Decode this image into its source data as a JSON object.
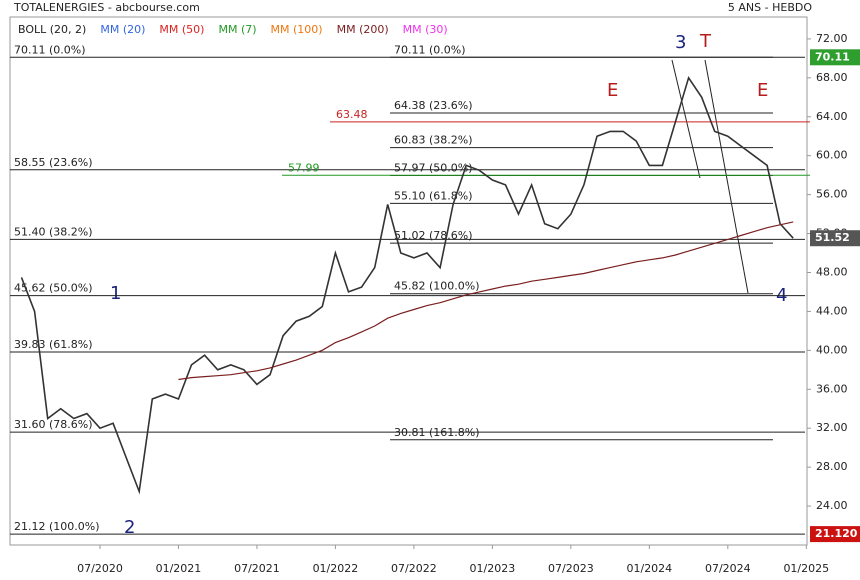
{
  "chart_data": {
    "type": "line",
    "title": "TOTALENERGIES - abcbourse.com",
    "subtitle": "5 ANS - HEBDO",
    "indicators": [
      {
        "name": "BOLL (20, 2)",
        "color": "#222222"
      },
      {
        "name": "MM (20)",
        "color": "#3366dd"
      },
      {
        "name": "MM (50)",
        "color": "#dd2222"
      },
      {
        "name": "MM (7)",
        "color": "#229922"
      },
      {
        "name": "MM (100)",
        "color": "#ee7711"
      },
      {
        "name": "MM (200)",
        "color": "#7a1f1f"
      },
      {
        "name": "MM (30)",
        "color": "#ee33ee"
      }
    ],
    "x": [
      "01/2020",
      "02/2020",
      "03/2020",
      "04/2020",
      "05/2020",
      "06/2020",
      "07/2020",
      "08/2020",
      "09/2020",
      "10/2020",
      "11/2020",
      "12/2020",
      "01/2021",
      "02/2021",
      "03/2021",
      "04/2021",
      "05/2021",
      "06/2021",
      "07/2021",
      "08/2021",
      "09/2021",
      "10/2021",
      "11/2021",
      "12/2021",
      "01/2022",
      "02/2022",
      "03/2022",
      "04/2022",
      "05/2022",
      "06/2022",
      "07/2022",
      "08/2022",
      "09/2022",
      "10/2022",
      "11/2022",
      "12/2022",
      "01/2023",
      "02/2023",
      "03/2023",
      "04/2023",
      "05/2023",
      "06/2023",
      "07/2023",
      "08/2023",
      "09/2023",
      "10/2023",
      "11/2023",
      "12/2023",
      "01/2024",
      "02/2024",
      "03/2024",
      "04/2024",
      "05/2024",
      "06/2024",
      "07/2024",
      "08/2024",
      "09/2024",
      "10/2024",
      "11/2024",
      "12/2024"
    ],
    "series": [
      {
        "color": "#333333",
        "values": [
          47.5,
          44,
          33,
          34,
          33,
          33.5,
          32,
          32.5,
          29,
          25.5,
          35,
          35.5,
          35,
          38.5,
          39.5,
          38,
          38.5,
          38,
          36.5,
          37.5,
          41.5,
          43,
          43.5,
          44.5,
          50,
          46,
          46.5,
          48.5,
          55,
          50,
          49.5,
          50,
          48.5,
          55,
          59,
          58.5,
          57.5,
          57,
          54,
          57,
          53,
          52.5,
          54,
          57,
          62,
          62.5,
          62.5,
          61.5,
          59,
          59,
          63.5,
          68,
          66,
          62.5,
          62,
          61,
          60,
          59,
          53,
          51.52
        ]
      },
      {
        "indicator": 5,
        "color": "#7a1f1f",
        "values": [
          null,
          null,
          null,
          null,
          null,
          null,
          null,
          null,
          null,
          null,
          null,
          null,
          37,
          37.2,
          37.3,
          37.4,
          37.5,
          37.7,
          37.9,
          38.2,
          38.6,
          39,
          39.5,
          40,
          40.8,
          41.3,
          41.9,
          42.5,
          43.3,
          43.8,
          44.2,
          44.6,
          44.9,
          45.3,
          45.7,
          46,
          46.3,
          46.6,
          46.8,
          47.1,
          47.3,
          47.5,
          47.7,
          47.9,
          48.2,
          48.5,
          48.8,
          49.1,
          49.3,
          49.5,
          49.8,
          50.2,
          50.6,
          51,
          51.4,
          51.8,
          52.2,
          52.6,
          52.9,
          53.2
        ]
      }
    ],
    "ylim": [
      20,
      74.25
    ],
    "yticks": [
      {
        "value": 24,
        "label": "24.00"
      },
      {
        "value": 28,
        "label": "28.00"
      },
      {
        "value": 32,
        "label": "32.00"
      },
      {
        "value": 36,
        "label": "36.00"
      },
      {
        "value": 40,
        "label": "40.00"
      },
      {
        "value": 44,
        "label": "44.00"
      },
      {
        "value": 48,
        "label": "48.00"
      },
      {
        "value": 52,
        "label": "52.00"
      },
      {
        "value": 56,
        "label": "56.00"
      },
      {
        "value": 60,
        "label": "60.00"
      },
      {
        "value": 64,
        "label": "64.00"
      },
      {
        "value": 68,
        "label": "68.00"
      },
      {
        "value": 72,
        "label": "72.00"
      }
    ],
    "xticks": [
      "07/2020",
      "01/2021",
      "07/2021",
      "01/2022",
      "07/2022",
      "01/2023",
      "07/2023",
      "01/2024",
      "07/2024",
      "01/2025"
    ],
    "fib_left": [
      {
        "value": 70.11,
        "label": "70.11 (0.0%)"
      },
      {
        "value": 58.55,
        "label": "58.55 (23.6%)"
      },
      {
        "value": 51.4,
        "label": "51.40 (38.2%)"
      },
      {
        "value": 45.62,
        "label": "45.62 (50.0%)"
      },
      {
        "value": 39.83,
        "label": "39.83 (61.8%)"
      },
      {
        "value": 31.6,
        "label": "31.60 (78.6%)"
      },
      {
        "value": 21.12,
        "label": "21.12 (100.0%)"
      }
    ],
    "fib_right": [
      {
        "value": 70.11,
        "label": "70.11 (0.0%)"
      },
      {
        "value": 64.38,
        "label": "64.38 (23.6%)"
      },
      {
        "value": 60.83,
        "label": "60.83 (38.2%)"
      },
      {
        "value": 57.97,
        "label": "57.97 (50.0%)"
      },
      {
        "value": 55.1,
        "label": "55.10 (61.8%)"
      },
      {
        "value": 51.02,
        "label": "51.02 (78.6%)"
      },
      {
        "value": 45.82,
        "label": "45.82 (100.0%)"
      },
      {
        "value": 30.81,
        "label": "30.81 (161.8%)"
      }
    ],
    "levels": [
      {
        "value": 63.48,
        "label": "63.48",
        "color": "#cc2222"
      },
      {
        "value": 57.99,
        "label": "57.99",
        "color": "#229922"
      }
    ],
    "price_tags": [
      {
        "value": 70.11,
        "label": "70.11",
        "color": "#2e9e2e"
      },
      {
        "value": 51.52,
        "label": "51.52",
        "color": "#555555"
      },
      {
        "value": 21.12,
        "label": "21.120",
        "color": "#cc1111"
      }
    ],
    "annotations": [
      "1",
      "2",
      "3",
      "T",
      "E",
      "E",
      "4"
    ]
  }
}
